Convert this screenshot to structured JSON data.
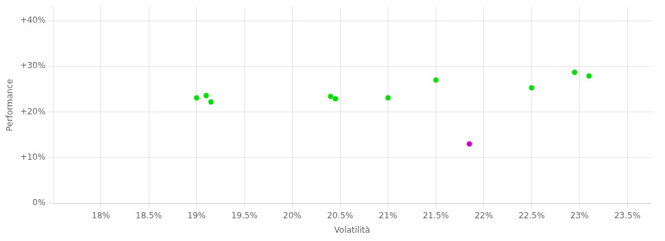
{
  "chart_data": {
    "type": "scatter",
    "xlabel": "Volatilità",
    "ylabel": "Performance",
    "xlim": [
      0.175,
      0.2375
    ],
    "ylim": [
      0.0,
      0.43
    ],
    "xticks": [
      {
        "value": 0.18,
        "label": "18%"
      },
      {
        "value": 0.185,
        "label": "18.5%"
      },
      {
        "value": 0.19,
        "label": "19%"
      },
      {
        "value": 0.195,
        "label": "19.5%"
      },
      {
        "value": 0.2,
        "label": "20%"
      },
      {
        "value": 0.205,
        "label": "20.5%"
      },
      {
        "value": 0.21,
        "label": "21%"
      },
      {
        "value": 0.215,
        "label": "21.5%"
      },
      {
        "value": 0.22,
        "label": "22%"
      },
      {
        "value": 0.225,
        "label": "22.5%"
      },
      {
        "value": 0.23,
        "label": "23%"
      },
      {
        "value": 0.235,
        "label": "23.5%"
      }
    ],
    "yticks": [
      {
        "value": 0.0,
        "label": "0%"
      },
      {
        "value": 0.1,
        "label": "+10%"
      },
      {
        "value": 0.2,
        "label": "+20%"
      },
      {
        "value": 0.3,
        "label": "+30%"
      },
      {
        "value": 0.4,
        "label": "+40%"
      }
    ],
    "grid": true,
    "series": [
      {
        "color": "#00dd00",
        "x": [
          0.19,
          0.191,
          0.1915,
          0.204,
          0.2045,
          0.21,
          0.215,
          0.225,
          0.2295,
          0.231
        ],
        "values": [
          0.231,
          0.236,
          0.222,
          0.234,
          0.229,
          0.231,
          0.27,
          0.253,
          0.287,
          0.279
        ]
      },
      {
        "color": "#cc00cc",
        "x": [
          0.2185
        ],
        "values": [
          0.13
        ]
      }
    ]
  }
}
